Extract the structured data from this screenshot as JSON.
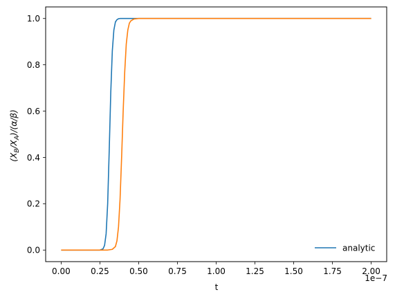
{
  "chart_data": {
    "type": "line",
    "xlabel": "t",
    "ylabel": "(X_B/X_A)/(α/β)",
    "ylabel_parts": {
      "open": "(X",
      "sub1": "B",
      "mid": "/X",
      "sub2": "A",
      "close": ")/(α/β)"
    },
    "x_offset_text": "1e−7",
    "xlim": [
      -0.1,
      2.1
    ],
    "ylim": [
      -0.05,
      1.05
    ],
    "x_ticks": [
      0.0,
      0.25,
      0.5,
      0.75,
      1.0,
      1.25,
      1.5,
      1.75,
      2.0
    ],
    "x_tick_labels": [
      "0.00",
      "0.25",
      "0.50",
      "0.75",
      "1.00",
      "1.25",
      "1.50",
      "1.75",
      "2.00"
    ],
    "y_ticks": [
      0.0,
      0.2,
      0.4,
      0.6,
      0.8,
      1.0
    ],
    "y_tick_labels": [
      "0.0",
      "0.2",
      "0.4",
      "0.6",
      "0.8",
      "1.0"
    ],
    "grid": false,
    "legend": {
      "placement": "lower-right",
      "entries": [
        "analytic"
      ]
    },
    "series": [
      {
        "name": "analytic",
        "color": "#1f77b4",
        "x": [
          0.0,
          0.25,
          0.27,
          0.28,
          0.29,
          0.3,
          0.31,
          0.32,
          0.33,
          0.34,
          0.35,
          0.36,
          0.37,
          0.38,
          0.4,
          0.45,
          2.0
        ],
        "y": [
          0.0,
          0.0,
          0.005,
          0.02,
          0.07,
          0.2,
          0.43,
          0.68,
          0.86,
          0.95,
          0.985,
          0.995,
          0.999,
          1.0,
          1.0,
          1.0,
          1.0
        ]
      },
      {
        "color": "#ff7f0e",
        "x": [
          0.0,
          0.3,
          0.33,
          0.35,
          0.36,
          0.37,
          0.38,
          0.39,
          0.4,
          0.41,
          0.42,
          0.43,
          0.44,
          0.45,
          0.47,
          0.5,
          0.55,
          2.0
        ],
        "y": [
          0.0,
          0.0,
          0.003,
          0.015,
          0.04,
          0.1,
          0.22,
          0.4,
          0.6,
          0.77,
          0.89,
          0.95,
          0.98,
          0.99,
          0.998,
          1.0,
          1.0,
          1.0
        ]
      }
    ]
  }
}
